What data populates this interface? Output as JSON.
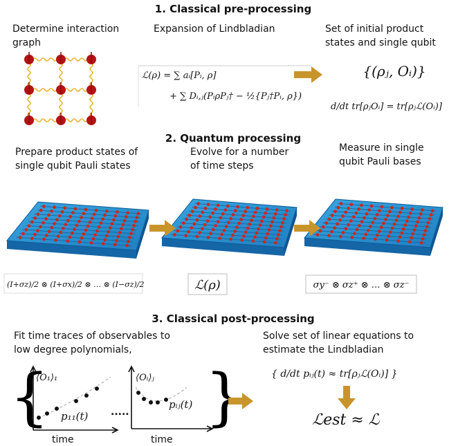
{
  "section1": {
    "title": "1. Classical pre-processing",
    "graph_caption": [
      "Determine interaction",
      "graph"
    ],
    "expansion_caption": "Expansion of Lindbladian",
    "expansion_equation": [
      "ℒ(ρ) = ∑ aᵢ[Pᵢ, ρ]",
      "+ ∑ Dᵢ,ⱼ(PᵢρPⱼ† − ½{Pⱼ†Pᵢ, ρ})"
    ],
    "states_caption": [
      "Set of initial product",
      "states and single qubit"
    ],
    "states_set": "{(ρⱼ, Oᵢ)}",
    "states_equation": "d/dt tr[ρⱼOᵢ] = tr[ρⱼℒ(Oᵢ)]"
  },
  "section2": {
    "title": "2. Quantum processing",
    "prepare_caption": [
      "Prepare product states of",
      "single qubit Pauli states"
    ],
    "evolve_caption": [
      "Evolve for a number",
      "of time steps"
    ],
    "measure_caption": [
      "Measure in single",
      "qubit Pauli bases"
    ],
    "prepare_formula": "(I+σz)/2 ⊗ (I+σx)/2 ⊗ … ⊗ (I−σz)/2",
    "evolve_formula": "ℒ(ρ)",
    "measure_formula": "σy⁻ ⊗ σz⁺ ⊗ … ⊗ σz⁻"
  },
  "section3": {
    "title": "3. Classical post-processing",
    "fit_caption": [
      "Fit time traces of observables to",
      "low degree polynomials,"
    ],
    "solve_caption": [
      "Solve set of linear equations to",
      "estimate the Lindbladian"
    ],
    "plot1": {
      "ylabel": "⟨O₁⟩₁",
      "curve": "p₁₁(t)",
      "xlabel": "time"
    },
    "plot2": {
      "ylabel": "⟨Oᵢ⟩ⱼ",
      "curve": "pᵢⱼ(t)",
      "xlabel": "time"
    },
    "ellipsis": ".....",
    "linear_equation": "{ d/dt pᵢⱼ(t) ≈ tr[ρⱼℒ(Oᵢ)] }",
    "result": "ℒest ≈ ℒ"
  }
}
